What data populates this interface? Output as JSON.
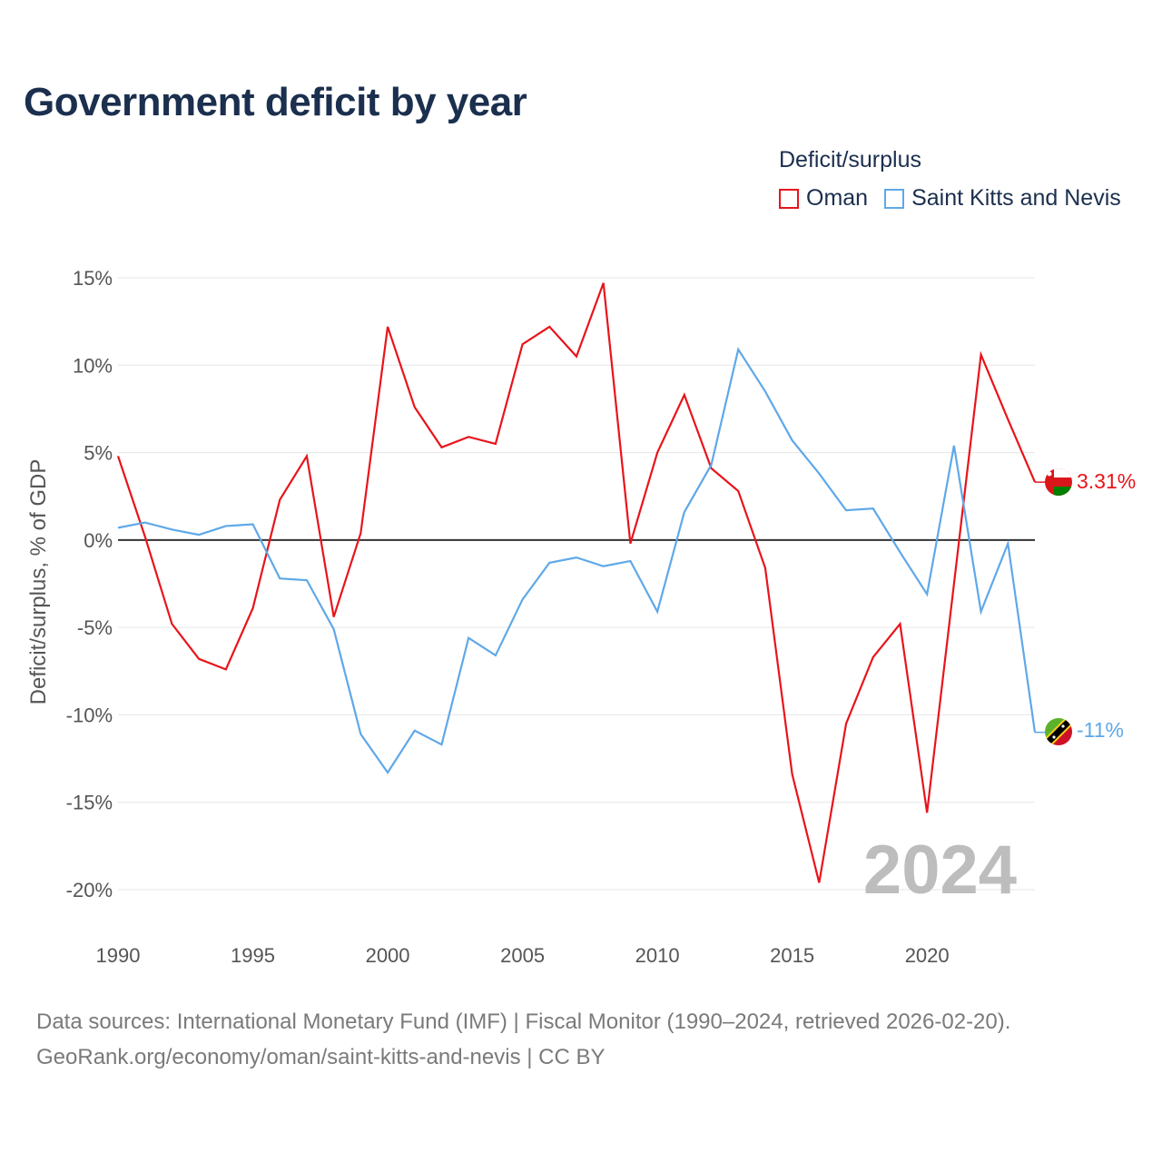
{
  "title": "Government deficit by year",
  "legend": {
    "title": "Deficit/surplus",
    "items": [
      {
        "label": "Oman",
        "color": "#e8141b"
      },
      {
        "label": "Saint Kitts and Nevis",
        "color": "#5fa8e8"
      }
    ]
  },
  "chart_data": {
    "type": "line",
    "title": "Government deficit by year",
    "xlabel": "",
    "ylabel": "Deficit/surplus, % of GDP",
    "xlim": [
      1990,
      2024
    ],
    "ylim": [
      -20,
      15
    ],
    "x_ticks": [
      1990,
      1995,
      2000,
      2005,
      2010,
      2015,
      2020
    ],
    "x_tick_labels": [
      "1990",
      "1995",
      "2000",
      "2005",
      "2010",
      "2015",
      "2020"
    ],
    "y_ticks": [
      15,
      10,
      5,
      0,
      -5,
      -10,
      -15,
      -20
    ],
    "y_tick_labels": [
      "15%",
      "10%",
      "5%",
      "0%",
      "-5%",
      "-10%",
      "-15%",
      "-20%"
    ],
    "grid": true,
    "x": [
      1990,
      1991,
      1992,
      1993,
      1994,
      1995,
      1996,
      1997,
      1998,
      1999,
      2000,
      2001,
      2002,
      2003,
      2004,
      2005,
      2006,
      2007,
      2008,
      2009,
      2010,
      2011,
      2012,
      2013,
      2014,
      2015,
      2016,
      2017,
      2018,
      2019,
      2020,
      2021,
      2022,
      2023,
      2024
    ],
    "series": [
      {
        "name": "Oman",
        "color": "#e8141b",
        "values": [
          4.8,
          0.2,
          -4.8,
          -6.8,
          -7.4,
          -3.9,
          2.3,
          4.8,
          -4.4,
          0.4,
          12.2,
          7.6,
          5.3,
          5.9,
          5.5,
          11.2,
          12.2,
          10.5,
          14.7,
          -0.2,
          5.0,
          8.3,
          4.1,
          2.8,
          -1.6,
          -13.4,
          -19.6,
          -10.5,
          -6.7,
          -4.8,
          -15.6,
          -2.5,
          10.6,
          6.9,
          3.31
        ]
      },
      {
        "name": "Saint Kitts and Nevis",
        "color": "#5fa8e8",
        "values": [
          0.7,
          1.0,
          0.6,
          0.3,
          0.8,
          0.9,
          -2.2,
          -2.3,
          -5.1,
          -11.1,
          -13.3,
          -10.9,
          -11.7,
          -5.6,
          -6.6,
          -3.4,
          -1.3,
          -1.0,
          -1.5,
          -1.2,
          -4.1,
          1.6,
          4.3,
          10.9,
          8.5,
          5.7,
          3.8,
          1.7,
          1.8,
          -0.7,
          -3.1,
          5.4,
          -4.1,
          -0.2,
          -11.0
        ]
      }
    ],
    "end_labels": [
      "3.31%",
      "-11%"
    ],
    "year_watermark": "2024"
  },
  "source": {
    "line1": "Data sources: International Monetary Fund (IMF) | Fiscal Monitor (1990–2024, retrieved 2026-02-20).",
    "line2": "GeoRank.org/economy/oman/saint-kitts-and-nevis | CC BY"
  }
}
